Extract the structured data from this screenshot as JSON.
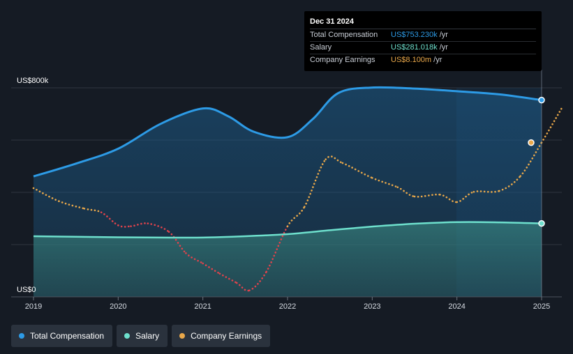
{
  "chart_data": {
    "type": "line",
    "x_ticks": [
      "2019",
      "2020",
      "2021",
      "2022",
      "2023",
      "2024",
      "2025"
    ],
    "y_ticks": [
      {
        "value": 0,
        "label": "US$0"
      },
      {
        "value": 200,
        "label": ""
      },
      {
        "value": 400,
        "label": ""
      },
      {
        "value": 600,
        "label": ""
      },
      {
        "value": 800,
        "label": "US$800k"
      }
    ],
    "ylim": [
      0,
      800
    ],
    "grid": true,
    "legend_position": "bottom-left",
    "series": [
      {
        "name": "Total Compensation",
        "color": "#2d9be6",
        "x": [
          2019.0,
          2019.5,
          2020.0,
          2020.5,
          2021.0,
          2021.3,
          2021.6,
          2022.0,
          2022.3,
          2022.6,
          2023.0,
          2023.5,
          2024.0,
          2024.5,
          2025.0
        ],
        "values": [
          461,
          510,
          567,
          662,
          721,
          691,
          632,
          611,
          681,
          780,
          801,
          797,
          787,
          775,
          753
        ]
      },
      {
        "name": "Salary",
        "color": "#6ee0cd",
        "x": [
          2019.0,
          2019.5,
          2020.0,
          2020.5,
          2021.0,
          2021.5,
          2022.0,
          2022.5,
          2023.0,
          2023.5,
          2024.0,
          2024.5,
          2025.0
        ],
        "values": [
          232,
          230,
          228,
          227,
          227,
          232,
          240,
          255,
          269,
          280,
          286,
          285,
          281
        ]
      },
      {
        "name": "Company Earnings",
        "color": "#e9a84a",
        "negative_color": "#e0434c",
        "dotted": true,
        "x": [
          2019.0,
          2019.3,
          2019.6,
          2019.8,
          2020.0,
          2020.15,
          2020.35,
          2020.6,
          2020.8,
          2021.0,
          2021.2,
          2021.4,
          2021.55,
          2021.75,
          2022.0,
          2022.2,
          2022.45,
          2022.65,
          2023.0,
          2023.3,
          2023.5,
          2023.8,
          2024.0,
          2024.2,
          2024.5,
          2024.75,
          2025.0,
          2025.25
        ],
        "values": [
          3.2,
          1.8,
          1.0,
          0.6,
          -0.8,
          -0.9,
          -0.6,
          -1.5,
          -3.8,
          -4.9,
          -6.0,
          -7.0,
          -7.8,
          -5.8,
          -0.9,
          1.2,
          6.3,
          5.9,
          4.3,
          3.3,
          2.3,
          2.5,
          1.7,
          2.8,
          2.9,
          4.5,
          8.1,
          12.0
        ],
        "ylim": [
          -8.5,
          14.0
        ]
      }
    ]
  },
  "tooltip": {
    "date": "Dec 31 2024",
    "rows": [
      {
        "name": "Total Compensation",
        "value": "US$753.230k",
        "unit": "/yr",
        "color": "#2d9be6"
      },
      {
        "name": "Salary",
        "value": "US$281.018k",
        "unit": "/yr",
        "color": "#6ee0cd"
      },
      {
        "name": "Company Earnings",
        "value": "US$8.100m",
        "unit": "/yr",
        "color": "#e9a84a"
      }
    ]
  },
  "legend": [
    {
      "label": "Total Compensation",
      "color": "#2d9be6"
    },
    {
      "label": "Salary",
      "color": "#6ee0cd"
    },
    {
      "label": "Company Earnings",
      "color": "#e9a84a"
    }
  ]
}
